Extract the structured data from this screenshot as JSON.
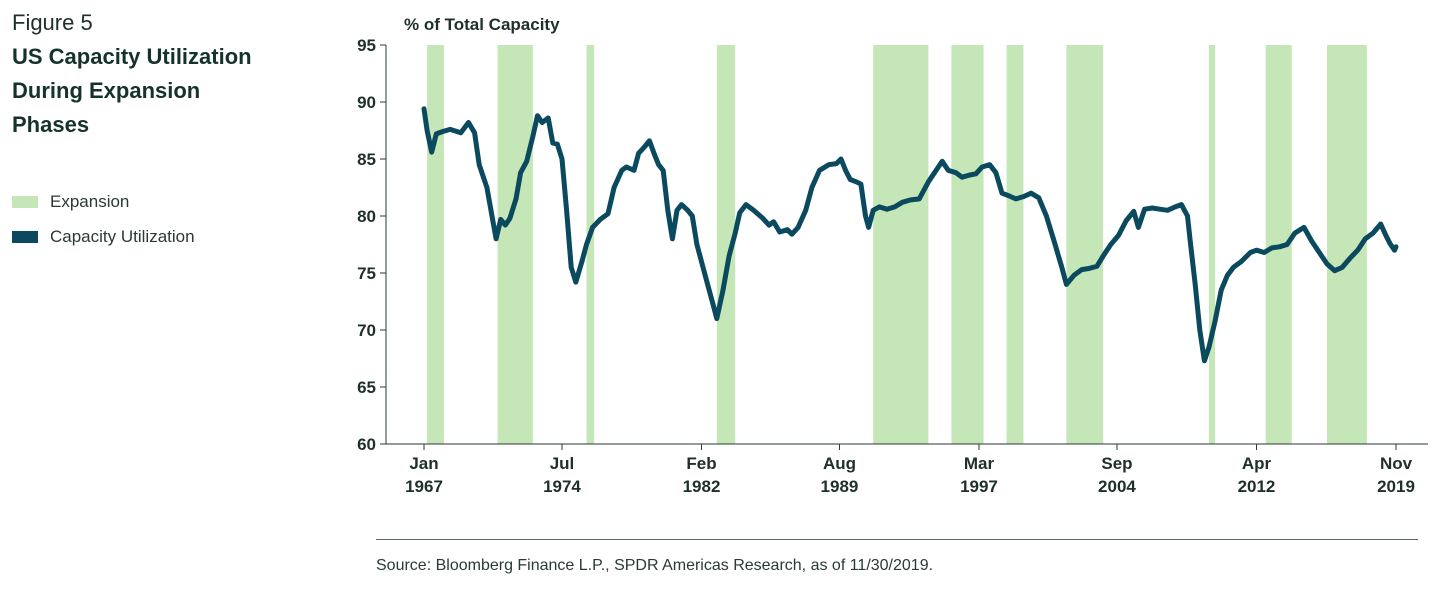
{
  "figure_label": "Figure 5",
  "figure_title": "US Capacity Utilization During Expansion Phases",
  "legend": [
    {
      "label": "Expansion",
      "color": "#c5e7b7"
    },
    {
      "label": "Capacity Utilization",
      "color": "#0b4a5e"
    }
  ],
  "source": "Source: Bloomberg Finance L.P., SPDR Americas Research, as of 11/30/2019.",
  "chart_data": {
    "type": "line",
    "title": "US Capacity Utilization During Expansion Phases",
    "ylabel": "% of Total Capacity",
    "xlabel": "",
    "ylim": [
      60,
      95
    ],
    "xlim": [
      "1967-01",
      "2019-11"
    ],
    "y_ticks": [
      60,
      65,
      70,
      75,
      80,
      85,
      90,
      95
    ],
    "x_ticks": [
      {
        "date": "1967-01",
        "line1": "Jan",
        "line2": "1967"
      },
      {
        "date": "1974-07",
        "line1": "Jul",
        "line2": "1974"
      },
      {
        "date": "1982-02",
        "line1": "Feb",
        "line2": "1982"
      },
      {
        "date": "1989-08",
        "line1": "Aug",
        "line2": "1989"
      },
      {
        "date": "1997-03",
        "line1": "Mar",
        "line2": "1997"
      },
      {
        "date": "2004-09",
        "line1": "Sep",
        "line2": "2004"
      },
      {
        "date": "2012-04",
        "line1": "Apr",
        "line2": "2012"
      },
      {
        "date": "2019-11",
        "line1": "Nov",
        "line2": "2019"
      }
    ],
    "grid": false,
    "expansion_periods": [
      [
        "1967-03",
        "1968-02"
      ],
      [
        "1971-01",
        "1972-12"
      ],
      [
        "1975-11",
        "1976-04"
      ],
      [
        "1982-12",
        "1983-12"
      ],
      [
        "1991-06",
        "1994-06"
      ],
      [
        "1995-09",
        "1997-06"
      ],
      [
        "1998-09",
        "1999-08"
      ],
      [
        "2001-12",
        "2003-12"
      ],
      [
        "2009-09",
        "2010-01"
      ],
      [
        "2012-10",
        "2014-03"
      ],
      [
        "2016-02",
        "2018-04"
      ]
    ],
    "series": [
      {
        "name": "Capacity Utilization",
        "color": "#0b4a5e",
        "points": [
          [
            "1967-01",
            89.4
          ],
          [
            "1967-03",
            87.5
          ],
          [
            "1967-06",
            85.6
          ],
          [
            "1967-09",
            87.2
          ],
          [
            "1968-01",
            87.4
          ],
          [
            "1968-06",
            87.6
          ],
          [
            "1969-01",
            87.3
          ],
          [
            "1969-06",
            88.2
          ],
          [
            "1969-10",
            87.3
          ],
          [
            "1970-01",
            84.5
          ],
          [
            "1970-06",
            82.5
          ],
          [
            "1970-10",
            79.5
          ],
          [
            "1970-12",
            78.0
          ],
          [
            "1971-03",
            79.7
          ],
          [
            "1971-06",
            79.2
          ],
          [
            "1971-09",
            79.8
          ],
          [
            "1972-01",
            81.5
          ],
          [
            "1972-04",
            83.8
          ],
          [
            "1972-08",
            84.8
          ],
          [
            "1972-12",
            87.0
          ],
          [
            "1973-03",
            88.8
          ],
          [
            "1973-06",
            88.2
          ],
          [
            "1973-10",
            88.6
          ],
          [
            "1974-01",
            86.4
          ],
          [
            "1974-04",
            86.3
          ],
          [
            "1974-07",
            85.0
          ],
          [
            "1974-10",
            80.5
          ],
          [
            "1975-01",
            75.5
          ],
          [
            "1975-04",
            74.2
          ],
          [
            "1975-08",
            76.0
          ],
          [
            "1975-11",
            77.5
          ],
          [
            "1976-03",
            79.0
          ],
          [
            "1976-08",
            79.7
          ],
          [
            "1977-01",
            80.2
          ],
          [
            "1977-05",
            82.5
          ],
          [
            "1977-10",
            84.0
          ],
          [
            "1978-01",
            84.3
          ],
          [
            "1978-06",
            84.0
          ],
          [
            "1978-09",
            85.5
          ],
          [
            "1979-01",
            86.1
          ],
          [
            "1979-04",
            86.6
          ],
          [
            "1979-07",
            85.5
          ],
          [
            "1979-10",
            84.5
          ],
          [
            "1980-01",
            84.0
          ],
          [
            "1980-04",
            80.5
          ],
          [
            "1980-07",
            78.0
          ],
          [
            "1980-10",
            80.5
          ],
          [
            "1981-01",
            81.0
          ],
          [
            "1981-05",
            80.5
          ],
          [
            "1981-08",
            80.0
          ],
          [
            "1981-11",
            77.5
          ],
          [
            "1982-02",
            76.0
          ],
          [
            "1982-06",
            74.0
          ],
          [
            "1982-10",
            72.0
          ],
          [
            "1982-12",
            71.0
          ],
          [
            "1983-04",
            73.5
          ],
          [
            "1983-08",
            76.5
          ],
          [
            "1983-12",
            78.5
          ],
          [
            "1984-03",
            80.3
          ],
          [
            "1984-07",
            81.0
          ],
          [
            "1984-12",
            80.5
          ],
          [
            "1985-06",
            79.8
          ],
          [
            "1985-10",
            79.2
          ],
          [
            "1986-01",
            79.5
          ],
          [
            "1986-05",
            78.6
          ],
          [
            "1986-10",
            78.8
          ],
          [
            "1987-01",
            78.4
          ],
          [
            "1987-05",
            79.0
          ],
          [
            "1987-10",
            80.5
          ],
          [
            "1988-02",
            82.5
          ],
          [
            "1988-07",
            84.0
          ],
          [
            "1989-01",
            84.5
          ],
          [
            "1989-06",
            84.6
          ],
          [
            "1989-09",
            85.0
          ],
          [
            "1989-12",
            84.0
          ],
          [
            "1990-03",
            83.2
          ],
          [
            "1990-07",
            83.0
          ],
          [
            "1990-10",
            82.8
          ],
          [
            "1991-01",
            80.0
          ],
          [
            "1991-03",
            79.0
          ],
          [
            "1991-06",
            80.5
          ],
          [
            "1991-10",
            80.8
          ],
          [
            "1992-03",
            80.6
          ],
          [
            "1992-08",
            80.8
          ],
          [
            "1993-01",
            81.2
          ],
          [
            "1993-06",
            81.4
          ],
          [
            "1993-12",
            81.5
          ],
          [
            "1994-06",
            83.0
          ],
          [
            "1994-12",
            84.2
          ],
          [
            "1995-03",
            84.8
          ],
          [
            "1995-07",
            84.0
          ],
          [
            "1995-12",
            83.8
          ],
          [
            "1996-04",
            83.4
          ],
          [
            "1996-09",
            83.6
          ],
          [
            "1997-01",
            83.7
          ],
          [
            "1997-05",
            84.3
          ],
          [
            "1997-10",
            84.5
          ],
          [
            "1998-02",
            83.8
          ],
          [
            "1998-06",
            82.0
          ],
          [
            "1998-10",
            81.8
          ],
          [
            "1999-03",
            81.5
          ],
          [
            "1999-08",
            81.7
          ],
          [
            "2000-01",
            82.0
          ],
          [
            "2000-06",
            81.6
          ],
          [
            "2000-11",
            80.0
          ],
          [
            "2001-04",
            77.8
          ],
          [
            "2001-09",
            75.5
          ],
          [
            "2001-12",
            74.0
          ],
          [
            "2002-05",
            74.8
          ],
          [
            "2002-10",
            75.3
          ],
          [
            "2003-03",
            75.4
          ],
          [
            "2003-08",
            75.6
          ],
          [
            "2003-12",
            76.5
          ],
          [
            "2004-05",
            77.5
          ],
          [
            "2004-10",
            78.3
          ],
          [
            "2005-03",
            79.6
          ],
          [
            "2005-08",
            80.4
          ],
          [
            "2005-11",
            79.0
          ],
          [
            "2006-03",
            80.6
          ],
          [
            "2006-08",
            80.7
          ],
          [
            "2007-01",
            80.6
          ],
          [
            "2007-06",
            80.5
          ],
          [
            "2007-11",
            80.8
          ],
          [
            "2008-03",
            81.0
          ],
          [
            "2008-07",
            80.0
          ],
          [
            "2008-09",
            77.5
          ],
          [
            "2008-12",
            74.0
          ],
          [
            "2009-03",
            70.0
          ],
          [
            "2009-06",
            67.3
          ],
          [
            "2009-09",
            68.5
          ],
          [
            "2010-01",
            70.8
          ],
          [
            "2010-05",
            73.5
          ],
          [
            "2010-09",
            74.8
          ],
          [
            "2011-01",
            75.5
          ],
          [
            "2011-06",
            76.0
          ],
          [
            "2011-12",
            76.8
          ],
          [
            "2012-04",
            77.0
          ],
          [
            "2012-09",
            76.8
          ],
          [
            "2013-02",
            77.2
          ],
          [
            "2013-07",
            77.3
          ],
          [
            "2013-12",
            77.5
          ],
          [
            "2014-05",
            78.5
          ],
          [
            "2014-11",
            79.0
          ],
          [
            "2015-04",
            77.8
          ],
          [
            "2015-09",
            76.8
          ],
          [
            "2016-02",
            75.8
          ],
          [
            "2016-07",
            75.2
          ],
          [
            "2016-12",
            75.5
          ],
          [
            "2017-05",
            76.3
          ],
          [
            "2017-10",
            77.0
          ],
          [
            "2018-03",
            78.0
          ],
          [
            "2018-08",
            78.5
          ],
          [
            "2019-01",
            79.3
          ],
          [
            "2019-04",
            78.4
          ],
          [
            "2019-07",
            77.6
          ],
          [
            "2019-10",
            77.0
          ],
          [
            "2019-11",
            77.3
          ]
        ]
      }
    ]
  }
}
